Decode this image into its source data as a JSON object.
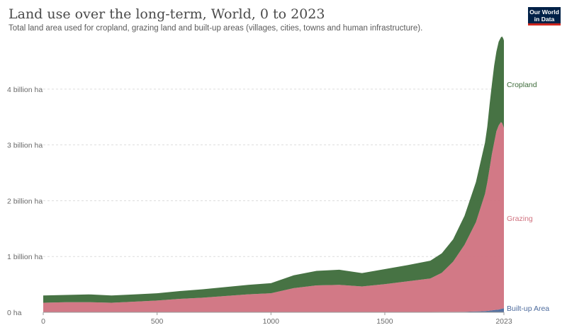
{
  "header": {
    "title": "Land use over the long-term, World, 0 to 2023",
    "subtitle": "Total land area used for cropland, grazing land and built-up areas (villages, cities, towns and human infrastructure)."
  },
  "logo": {
    "line1": "Our World",
    "line2": "in Data"
  },
  "chart_data": {
    "type": "area",
    "stacked": true,
    "x_label": "",
    "y_label": "",
    "xlim": [
      0,
      2023
    ],
    "ylim": [
      0,
      4.9
    ],
    "y_unit": "billion ha",
    "x_ticks": [
      {
        "value": 0,
        "label": "0"
      },
      {
        "value": 500,
        "label": "500"
      },
      {
        "value": 1000,
        "label": "1000"
      },
      {
        "value": 1500,
        "label": "1500"
      },
      {
        "value": 2023,
        "label": "2023"
      }
    ],
    "y_ticks": [
      {
        "value": 0,
        "label": "0 ha"
      },
      {
        "value": 1,
        "label": "1 billion ha"
      },
      {
        "value": 2,
        "label": "2 billion ha"
      },
      {
        "value": 3,
        "label": "3 billion ha"
      },
      {
        "value": 4,
        "label": "4 billion ha"
      }
    ],
    "grid": true,
    "legend": "inline-right",
    "x": [
      0,
      100,
      200,
      300,
      400,
      500,
      600,
      700,
      800,
      900,
      1000,
      1100,
      1200,
      1300,
      1400,
      1500,
      1600,
      1700,
      1750,
      1800,
      1850,
      1900,
      1920,
      1940,
      1950,
      1960,
      1970,
      1980,
      1990,
      2000,
      2010,
      2015,
      2020,
      2023
    ],
    "series": [
      {
        "name": "Built-up Area",
        "color": "#4c6a9c",
        "values": [
          0.001,
          0.001,
          0.001,
          0.001,
          0.001,
          0.001,
          0.001,
          0.002,
          0.002,
          0.002,
          0.002,
          0.003,
          0.003,
          0.003,
          0.003,
          0.004,
          0.005,
          0.006,
          0.007,
          0.008,
          0.01,
          0.015,
          0.018,
          0.022,
          0.025,
          0.03,
          0.035,
          0.04,
          0.045,
          0.05,
          0.06,
          0.065,
          0.07,
          0.072
        ]
      },
      {
        "name": "Grazing",
        "color": "#d0727f",
        "values": [
          0.17,
          0.18,
          0.18,
          0.17,
          0.19,
          0.21,
          0.24,
          0.26,
          0.29,
          0.32,
          0.34,
          0.43,
          0.48,
          0.49,
          0.46,
          0.5,
          0.55,
          0.6,
          0.7,
          0.9,
          1.2,
          1.6,
          1.85,
          2.1,
          2.3,
          2.55,
          2.8,
          3.0,
          3.2,
          3.3,
          3.35,
          3.33,
          3.27,
          3.23
        ]
      },
      {
        "name": "Cropland",
        "color": "#3d6b3a",
        "values": [
          0.13,
          0.13,
          0.14,
          0.13,
          0.13,
          0.13,
          0.14,
          0.15,
          0.16,
          0.17,
          0.18,
          0.23,
          0.26,
          0.27,
          0.24,
          0.27,
          0.29,
          0.32,
          0.35,
          0.4,
          0.52,
          0.72,
          0.82,
          0.92,
          1.0,
          1.15,
          1.25,
          1.38,
          1.43,
          1.5,
          1.52,
          1.55,
          1.57,
          1.57
        ]
      }
    ]
  }
}
